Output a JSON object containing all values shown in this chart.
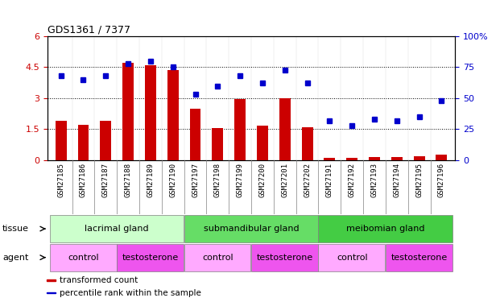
{
  "title": "GDS1361 / 7377",
  "samples": [
    "GSM27185",
    "GSM27186",
    "GSM27187",
    "GSM27188",
    "GSM27189",
    "GSM27190",
    "GSM27197",
    "GSM27198",
    "GSM27199",
    "GSM27200",
    "GSM27201",
    "GSM27202",
    "GSM27191",
    "GSM27192",
    "GSM27193",
    "GSM27194",
    "GSM27195",
    "GSM27196"
  ],
  "bar_values": [
    1.9,
    1.7,
    1.9,
    4.7,
    4.6,
    4.35,
    2.5,
    1.55,
    2.95,
    1.65,
    3.0,
    1.6,
    0.12,
    0.1,
    0.13,
    0.14,
    0.18,
    0.25
  ],
  "dot_values": [
    68,
    65,
    68,
    78,
    80,
    75,
    53,
    60,
    68,
    62,
    73,
    62,
    32,
    28,
    33,
    32,
    35,
    48
  ],
  "bar_color": "#cc0000",
  "dot_color": "#0000cc",
  "ylim_left": [
    0,
    6
  ],
  "ylim_right": [
    0,
    100
  ],
  "yticks_left": [
    0,
    1.5,
    3.0,
    4.5,
    6
  ],
  "yticks_right": [
    0,
    25,
    50,
    75,
    100
  ],
  "ytick_labels_left": [
    "0",
    "1.5",
    "3",
    "4.5",
    "6"
  ],
  "ytick_labels_right": [
    "0",
    "25",
    "50",
    "75",
    "100%"
  ],
  "tissue_groups": [
    {
      "label": "lacrimal gland",
      "start": 0,
      "end": 6,
      "color": "#ccffcc"
    },
    {
      "label": "submandibular gland",
      "start": 6,
      "end": 12,
      "color": "#66dd66"
    },
    {
      "label": "meibomian gland",
      "start": 12,
      "end": 18,
      "color": "#44cc44"
    }
  ],
  "agent_groups": [
    {
      "label": "control",
      "start": 0,
      "end": 3,
      "color": "#ffaaff"
    },
    {
      "label": "testosterone",
      "start": 3,
      "end": 6,
      "color": "#ee55ee"
    },
    {
      "label": "control",
      "start": 6,
      "end": 9,
      "color": "#ffaaff"
    },
    {
      "label": "testosterone",
      "start": 9,
      "end": 12,
      "color": "#ee55ee"
    },
    {
      "label": "control",
      "start": 12,
      "end": 15,
      "color": "#ffaaff"
    },
    {
      "label": "testosterone",
      "start": 15,
      "end": 18,
      "color": "#ee55ee"
    }
  ],
  "legend_items": [
    {
      "label": "transformed count",
      "color": "#cc0000"
    },
    {
      "label": "percentile rank within the sample",
      "color": "#0000cc"
    }
  ],
  "hgrid_values": [
    1.5,
    3.0,
    4.5
  ],
  "bar_width": 0.5,
  "bg_color": "#f0f0f0",
  "plot_bg": "#ffffff"
}
